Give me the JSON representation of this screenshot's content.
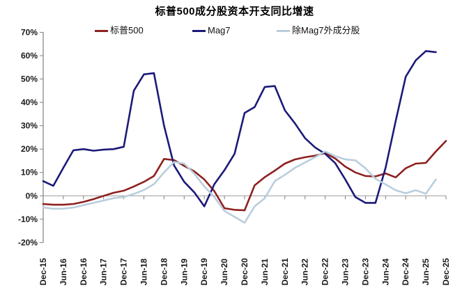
{
  "title": "标普500成分股资本开支同比增速",
  "legend": {
    "items": [
      {
        "label": "标普500",
        "color": "#8e2020"
      },
      {
        "label": "Mag7",
        "color": "#1c1a78"
      },
      {
        "label": "除Mag7外成分股",
        "color": "#b9cedd"
      }
    ]
  },
  "axis": {
    "axis_line_color": "#808080",
    "zero_line_color": "#a6a6a6",
    "tick_color": "#808080"
  },
  "chart_data": {
    "type": "line",
    "title": "标普500成分股资本开支同比增速",
    "xlabel": "",
    "ylabel": "",
    "ylim": [
      -20,
      70
    ],
    "grid": false,
    "legend_position": "top",
    "y_ticks": [
      70,
      60,
      50,
      40,
      30,
      20,
      10,
      0,
      -10,
      -20
    ],
    "y_tick_labels": [
      "70%",
      "60%",
      "50%",
      "40%",
      "30%",
      "20%",
      "10%",
      "0%",
      "-10%",
      "-20%"
    ],
    "x": [
      "Dec-15",
      "Mar-16",
      "Jun-16",
      "Sep-16",
      "Dec-16",
      "Mar-17",
      "Jun-17",
      "Sep-17",
      "Dec-17",
      "Mar-18",
      "Jun-18",
      "Sep-18",
      "Dec-18",
      "Mar-19",
      "Jun-19",
      "Sep-19",
      "Dec-19",
      "Mar-20",
      "Jun-20",
      "Sep-20",
      "Dec-20",
      "Mar-21",
      "Jun-21",
      "Sep-21",
      "Dec-21",
      "Mar-22",
      "Jun-22",
      "Sep-22",
      "Dec-22",
      "Mar-23",
      "Jun-23",
      "Sep-23",
      "Dec-23",
      "Mar-24",
      "Jun-24",
      "Sep-24",
      "Dec-24",
      "Mar-25",
      "Jun-25",
      "Sep-25",
      "Dec-25"
    ],
    "x_axis_labels": [
      "Dec-15",
      "Jun-16",
      "Dec-16",
      "Jun-17",
      "Dec-17",
      "Jun-18",
      "Dec-18",
      "Jun-19",
      "Dec-19",
      "Jun-20",
      "Dec-20",
      "Jun-21",
      "Dec-21",
      "Jun-22",
      "Dec-22",
      "Jun-23",
      "Dec-23",
      "Jun-24",
      "Dec-24",
      "Jun-25",
      "Dec-25"
    ],
    "series": [
      {
        "id": "sp500",
        "name": "标普500",
        "color": "#8e2020",
        "values": [
          -3.5,
          -3.8,
          -3.8,
          -3.5,
          -2.6,
          -1.4,
          0,
          1.3,
          2.2,
          4,
          6,
          8.5,
          15.8,
          15.3,
          12.8,
          10.5,
          7,
          2,
          -5.3,
          -6,
          -6.2,
          4.5,
          8,
          10.8,
          13.8,
          15.6,
          16.5,
          17.2,
          18.3,
          16,
          12.5,
          10,
          8.5,
          8.3,
          9.6,
          7.9,
          11.8,
          13.8,
          14.1,
          19,
          23.5
        ]
      },
      {
        "id": "mag7",
        "name": "Mag7",
        "color": "#1c1a78",
        "values": [
          6.3,
          4.3,
          12,
          19.5,
          20,
          19.3,
          19.8,
          20,
          21,
          45,
          52,
          52.5,
          30,
          13,
          6,
          1.5,
          -4.5,
          5,
          11,
          18,
          35.5,
          38,
          46.6,
          47,
          36.6,
          31,
          24.7,
          20.7,
          18,
          14,
          7,
          -0.5,
          -3,
          -3,
          12,
          32,
          51,
          58,
          62,
          61.5,
          null
        ]
      },
      {
        "id": "ex-mag7",
        "name": "除Mag7外成分股",
        "color": "#b9cedd",
        "values": [
          -5,
          -5.5,
          -5.5,
          -5,
          -4,
          -3,
          -2,
          -1,
          -0.5,
          0.8,
          2.5,
          5,
          10,
          14.5,
          13.8,
          9.5,
          4,
          -0.5,
          -6.5,
          -9,
          -11.5,
          -4.5,
          -1,
          6.3,
          9,
          12,
          14.3,
          16.5,
          19,
          17,
          15.6,
          15.2,
          11.8,
          7.3,
          4.9,
          2.4,
          1.1,
          2.4,
          0.9,
          7,
          null
        ]
      }
    ]
  }
}
